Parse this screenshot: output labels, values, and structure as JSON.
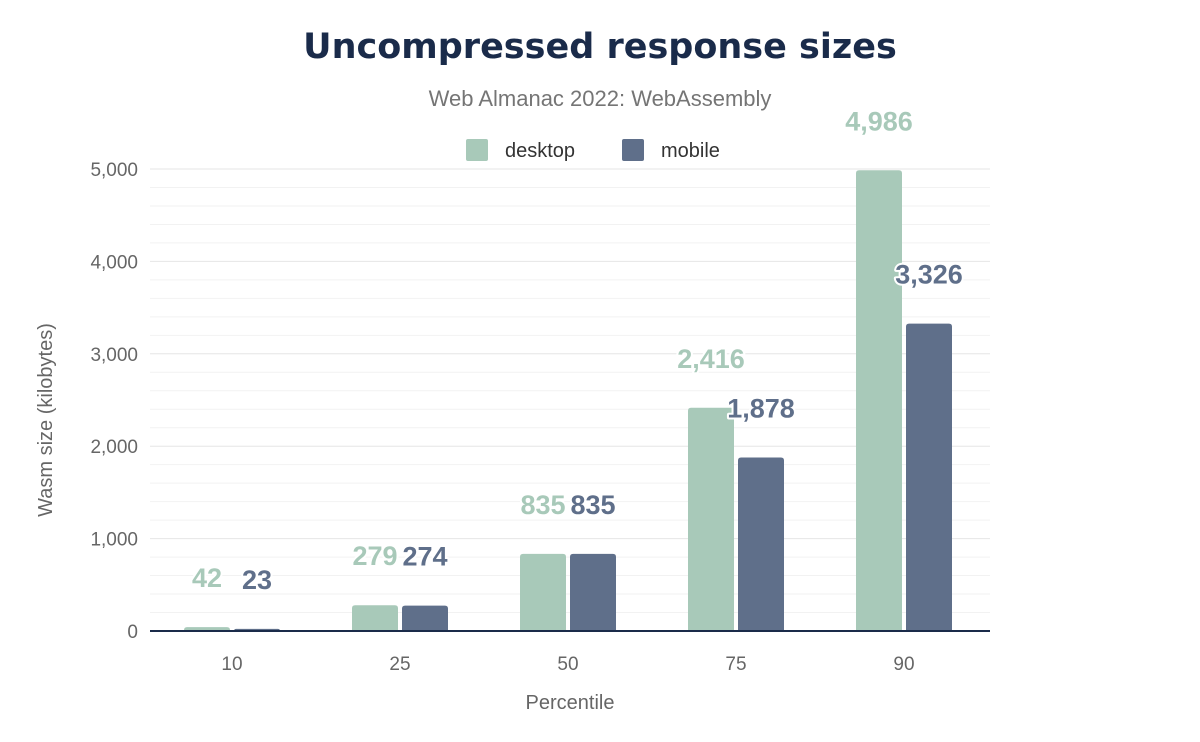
{
  "chart_data": {
    "type": "bar",
    "title": "Uncompressed response sizes",
    "subtitle": "Web Almanac 2022: WebAssembly",
    "xlabel": "Percentile",
    "ylabel": "Wasm size (kilobytes)",
    "categories": [
      "10",
      "25",
      "50",
      "75",
      "90"
    ],
    "series": [
      {
        "name": "desktop",
        "color": "#a8c9b9",
        "values": [
          42,
          279,
          835,
          2416,
          4986
        ],
        "labels": [
          "42",
          "279",
          "835",
          "2,416",
          "4,986"
        ]
      },
      {
        "name": "mobile",
        "color": "#5f6f8a",
        "values": [
          23,
          274,
          835,
          1878,
          3326
        ],
        "labels": [
          "23",
          "274",
          "835",
          "1,878",
          "3,326"
        ]
      }
    ],
    "ylim": [
      0,
      5000
    ],
    "yticks": [
      0,
      1000,
      2000,
      3000,
      4000,
      5000
    ],
    "ytick_labels": [
      "0",
      "1,000",
      "2,000",
      "3,000",
      "4,000",
      "5,000"
    ],
    "grid": true,
    "legend": "top-center"
  }
}
